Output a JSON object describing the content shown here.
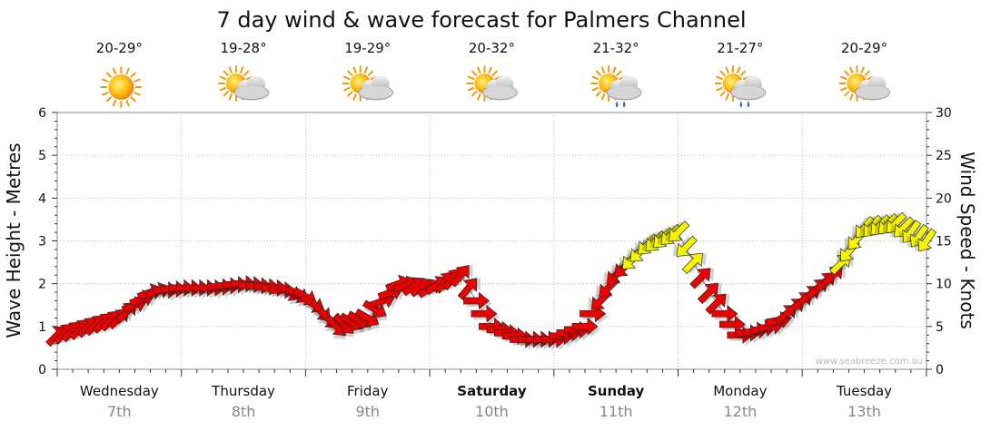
{
  "chart_data": {
    "type": "line",
    "title": "7 day wind & wave forecast for Palmers Channel",
    "ylabel": "Wave Height - Metres",
    "y2label": "Wind Speed - Knots",
    "ylim": [
      0,
      6
    ],
    "y2lim": [
      0,
      30
    ],
    "yticks": [
      "0",
      "1",
      "2",
      "3",
      "4",
      "5",
      "6"
    ],
    "y2ticks": [
      "0",
      "5",
      "10",
      "15",
      "20",
      "25",
      "30"
    ],
    "grid": true,
    "watermark": "www.seabreeze.com.au",
    "days": [
      {
        "name": "Wednesday",
        "date": "7th",
        "bold": false,
        "temp": "20-29°",
        "weather": "sunny"
      },
      {
        "name": "Thursday",
        "date": "8th",
        "bold": false,
        "temp": "19-28°",
        "weather": "partly-cloudy"
      },
      {
        "name": "Friday",
        "date": "9th",
        "bold": false,
        "temp": "19-29°",
        "weather": "partly-cloudy"
      },
      {
        "name": "Saturday",
        "date": "10th",
        "bold": true,
        "temp": "20-32°",
        "weather": "partly-cloudy"
      },
      {
        "name": "Sunday",
        "date": "11th",
        "bold": true,
        "temp": "21-32°",
        "weather": "shower"
      },
      {
        "name": "Monday",
        "date": "12th",
        "bold": false,
        "temp": "21-27°",
        "weather": "shower"
      },
      {
        "name": "Tuesday",
        "date": "13th",
        "bold": false,
        "temp": "20-29°",
        "weather": "partly-cloudy"
      }
    ],
    "series": [
      {
        "unit": "Knots",
        "x_unit": "hours from start",
        "x": [
          0,
          6,
          12,
          18,
          24,
          30,
          36,
          42,
          48,
          54,
          60,
          66,
          72,
          78,
          84,
          90,
          96,
          102,
          108,
          114,
          120,
          126,
          132,
          138,
          144,
          150,
          156,
          162,
          168
        ],
        "values": [
          4,
          5,
          6,
          9,
          9.5,
          9.5,
          10,
          9.5,
          8.5,
          5,
          6,
          10,
          9.5,
          11,
          5,
          3.5,
          3.5,
          5,
          11,
          14.5,
          16,
          9,
          4,
          5,
          8,
          11,
          16.5,
          17,
          15
        ]
      }
    ],
    "wind_dir_deg": [
      225,
      225,
      225,
      250,
      270,
      270,
      270,
      270,
      300,
      315,
      300,
      250,
      235,
      220,
      270,
      270,
      270,
      270,
      45,
      45,
      45,
      225,
      270,
      260,
      230,
      225,
      40,
      45,
      35
    ]
  }
}
